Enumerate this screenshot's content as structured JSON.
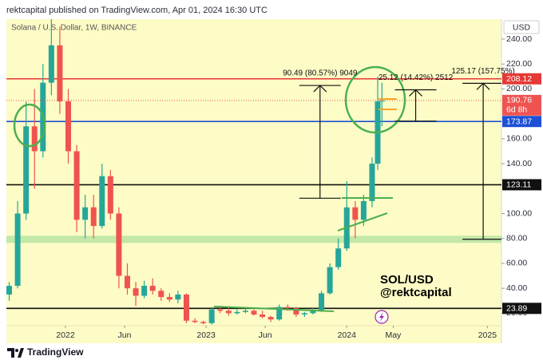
{
  "chart_data": {
    "type": "candlestick",
    "header": "rektcapital published on TradingView.com, Apr 01, 2024 16:30 UTC",
    "title": "Solana / U.S. Dollar, 1W, BINANCE",
    "currency": "USD",
    "x": [
      2021.6,
      2021.66,
      2021.72,
      2021.78,
      2021.84,
      2021.9,
      2021.96,
      2022.02,
      2022.08,
      2022.14,
      2022.2,
      2022.26,
      2022.32,
      2022.38,
      2022.44,
      2022.5,
      2022.56,
      2022.62,
      2022.68,
      2022.74,
      2022.8,
      2022.86,
      2022.92,
      2022.98,
      2023.04,
      2023.1,
      2023.16,
      2023.22,
      2023.28,
      2023.34,
      2023.4,
      2023.46,
      2023.52,
      2023.58,
      2023.64,
      2023.7,
      2023.76,
      2023.82,
      2023.88,
      2023.94,
      2024.0,
      2024.06,
      2024.12,
      2024.18,
      2024.22,
      2024.25
    ],
    "open": [
      35,
      42,
      100,
      170,
      150,
      205,
      235,
      190,
      150,
      95,
      105,
      90,
      130,
      100,
      50,
      40,
      34,
      42,
      38,
      33,
      31,
      35,
      14,
      13,
      12,
      23,
      22,
      20,
      21,
      22,
      19,
      17,
      15,
      25,
      24,
      19,
      20,
      22,
      36,
      57,
      72,
      105,
      95,
      110,
      140,
      190
    ],
    "high": [
      45,
      110,
      190,
      200,
      220,
      260,
      250,
      200,
      155,
      115,
      115,
      140,
      135,
      105,
      60,
      45,
      46,
      48,
      40,
      36,
      38,
      36,
      16,
      14,
      25,
      26,
      25,
      23,
      25,
      23,
      22,
      18,
      27,
      27,
      25,
      21,
      24,
      38,
      60,
      80,
      126,
      110,
      115,
      145,
      210,
      205
    ],
    "low": [
      30,
      40,
      95,
      120,
      145,
      195,
      180,
      140,
      85,
      80,
      80,
      88,
      95,
      40,
      35,
      26,
      32,
      35,
      30,
      29,
      28,
      12,
      12,
      11,
      11,
      20,
      18,
      19,
      20,
      18,
      16,
      13,
      14,
      22,
      17,
      17,
      19,
      21,
      35,
      55,
      70,
      80,
      90,
      105,
      135,
      170
    ],
    "close": [
      42,
      100,
      170,
      150,
      205,
      235,
      190,
      150,
      95,
      105,
      90,
      130,
      100,
      50,
      40,
      34,
      42,
      38,
      33,
      31,
      35,
      14,
      13,
      12,
      23,
      22,
      20,
      21,
      22,
      19,
      17,
      15,
      25,
      24,
      19,
      20,
      22,
      36,
      57,
      72,
      105,
      95,
      110,
      140,
      190,
      190.76
    ],
    "up_color": "#26a69a",
    "down_color": "#ef5350",
    "countdown": "6d 8h",
    "xlim": [
      2021.58,
      2025.1
    ],
    "xticks": [
      2022,
      {
        "value": 2022.42,
        "label": "Jun"
      },
      2023,
      {
        "value": 2023.42,
        "label": "Jun"
      },
      2024,
      {
        "value": 2024.33,
        "label": "May"
      },
      2025
    ],
    "ylim": [
      10,
      256
    ],
    "yticks": [
      {
        "value": 20,
        "label": "20.00"
      },
      {
        "value": 40,
        "label": "40.00"
      },
      {
        "value": 60,
        "label": "60.00"
      },
      {
        "value": 80,
        "label": "80.00"
      },
      {
        "value": 100,
        "label": "100.00"
      },
      {
        "value": 140,
        "label": "140.00"
      },
      {
        "value": 160,
        "label": "160.00"
      },
      {
        "value": 200,
        "label": "200.00"
      },
      {
        "value": 220,
        "label": "220.00"
      },
      {
        "value": 240,
        "label": "240.00"
      }
    ],
    "levels": [
      {
        "value": 208.12,
        "color": "#e53935"
      },
      {
        "value": 173.87,
        "color": "#1e4fd6"
      },
      {
        "value": 123.11,
        "color": "#111111"
      },
      {
        "value": 23.89,
        "color": "#111111"
      }
    ],
    "support_band": {
      "from": 76.4,
      "to": 82.2,
      "color": "#b9e4a2"
    },
    "measurements": [
      {
        "label": "90.49 (80.57%) 9049",
        "x": 2023.81,
        "from": 112.31,
        "change": 90.49
      },
      {
        "label": "25.12 (14.42%) 2512",
        "x": 2024.49,
        "from": 174.2,
        "change": 25.12
      },
      {
        "label": "125.17 (157.75%)",
        "x": 2024.97,
        "from": 79.35,
        "change": 125.17
      }
    ],
    "watermark": [
      "SOL/USD",
      "@rektcapital"
    ],
    "brand": "TradingView"
  }
}
